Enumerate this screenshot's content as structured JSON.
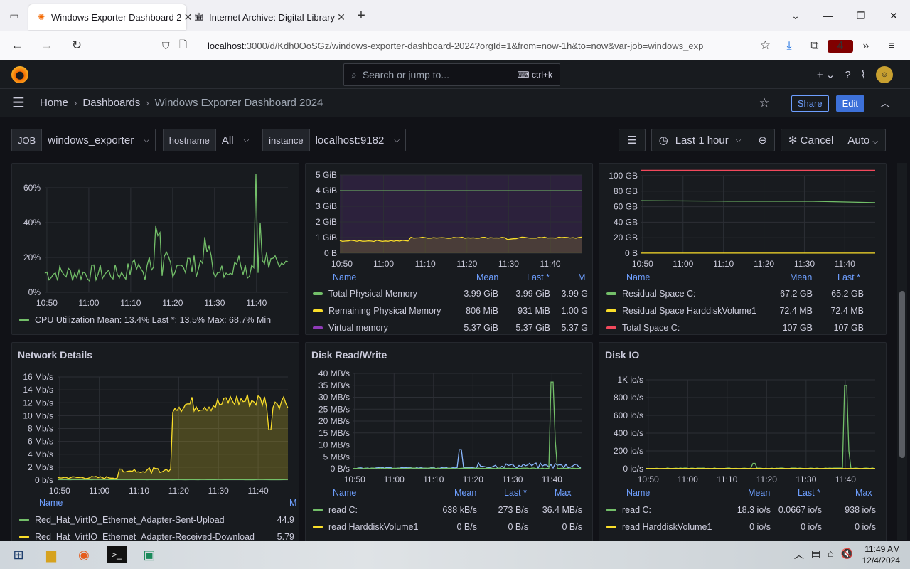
{
  "browser": {
    "tabs": [
      {
        "title": "Windows Exporter Dashboard 2",
        "active": true
      },
      {
        "title": "Internet Archive: Digital Library",
        "active": false
      }
    ],
    "url_host": "localhost",
    "url_rest": ":3000/d/Kdh0OoSGz/windows-exporter-dashboard-2024?orgId=1&from=now-1h&to=now&var-job=windows_exp",
    "extension_badge": "4"
  },
  "grafana": {
    "search_placeholder": "Search or jump to...",
    "search_shortcut": "ctrl+k",
    "breadcrumb": [
      "Home",
      "Dashboards",
      "Windows Exporter Dashboard 2024"
    ],
    "share_label": "Share",
    "edit_label": "Edit",
    "variables": [
      {
        "label": "JOB",
        "value": "windows_exporter"
      },
      {
        "label": "hostname",
        "value": "All"
      },
      {
        "label": "instance",
        "value": "localhost:9182"
      }
    ],
    "time_range": "Last 1 hour",
    "cancel_label": "Cancel",
    "refresh_label": "Auto"
  },
  "panels": {
    "cpu": {
      "y_ticks": [
        "60%",
        "40%",
        "20%",
        "0%"
      ],
      "x_ticks": [
        "10:50",
        "11:00",
        "11:10",
        "11:20",
        "11:30",
        "11:40"
      ],
      "legend": "CPU Utilization  Mean: 13.4%  Last *: 13.5%  Max: 68.7%  Min",
      "color": "#73bf69"
    },
    "memory": {
      "y_ticks": [
        "5 GiB",
        "4 GiB",
        "3 GiB",
        "2 GiB",
        "1 GiB",
        "0 B"
      ],
      "x_ticks": [
        "10:50",
        "11:00",
        "11:10",
        "11:20",
        "11:30",
        "11:40"
      ],
      "headers": {
        "name": "Name",
        "mean": "Mean",
        "last": "Last *",
        "max": "M"
      },
      "rows": [
        {
          "name": "Total Physical Memory",
          "mean": "3.99 GiB",
          "last": "3.99 GiB",
          "max": "3.99 G",
          "color": "#73bf69"
        },
        {
          "name": "Remaining Physical Memory",
          "mean": "806 MiB",
          "last": "931 MiB",
          "max": "1.00 G",
          "color": "#fade2a"
        },
        {
          "name": "Virtual memory",
          "mean": "5.37 GiB",
          "last": "5.37 GiB",
          "max": "5.37 G",
          "color": "#8f3bb8"
        }
      ]
    },
    "disk_space": {
      "y_ticks": [
        "100 GB",
        "80 GB",
        "60 GB",
        "40 GB",
        "20 GB",
        "0 B"
      ],
      "x_ticks": [
        "10:50",
        "11:00",
        "11:10",
        "11:20",
        "11:30",
        "11:40"
      ],
      "headers": {
        "name": "Name",
        "mean": "Mean",
        "last": "Last *"
      },
      "rows": [
        {
          "name": "Residual Space C:",
          "mean": "67.2 GB",
          "last": "65.2 GB",
          "color": "#73bf69"
        },
        {
          "name": "Residual Space HarddiskVolume1",
          "mean": "72.4 MB",
          "last": "72.4 MB",
          "color": "#fade2a"
        },
        {
          "name": "Total Space C:",
          "mean": "107 GB",
          "last": "107 GB",
          "color": "#f2495c"
        }
      ]
    },
    "network": {
      "title": "Network Details",
      "y_ticks": [
        "16 Mb/s",
        "14 Mb/s",
        "12 Mb/s",
        "10 Mb/s",
        "8 Mb/s",
        "6 Mb/s",
        "4 Mb/s",
        "2 Mb/s",
        "0 b/s"
      ],
      "x_ticks": [
        "10:50",
        "11:00",
        "11:10",
        "11:20",
        "11:30",
        "11:40"
      ],
      "headers": {
        "name": "Name",
        "max": "M"
      },
      "rows": [
        {
          "name": "Red_Hat_VirtIO_Ethernet_Adapter-Sent-Upload",
          "value": "44.9",
          "color": "#73bf69"
        },
        {
          "name": "Red_Hat_VirtIO_Ethernet_Adapter-Received-Download",
          "value": "5.79",
          "color": "#fade2a"
        }
      ]
    },
    "disk_rw": {
      "title": "Disk Read/Write",
      "y_ticks": [
        "40 MB/s",
        "35 MB/s",
        "30 MB/s",
        "25 MB/s",
        "20 MB/s",
        "15 MB/s",
        "10 MB/s",
        "5 MB/s",
        "0 B/s"
      ],
      "x_ticks": [
        "10:50",
        "11:00",
        "11:10",
        "11:20",
        "11:30",
        "11:40"
      ],
      "headers": {
        "name": "Name",
        "mean": "Mean",
        "last": "Last *",
        "max": "Max"
      },
      "rows": [
        {
          "name": "read C:",
          "mean": "638 kB/s",
          "last": "273 B/s",
          "max": "36.4 MB/s",
          "color": "#73bf69"
        },
        {
          "name": "read HarddiskVolume1",
          "mean": "0 B/s",
          "last": "0 B/s",
          "max": "0 B/s",
          "color": "#fade2a"
        }
      ]
    },
    "disk_io": {
      "title": "Disk IO",
      "y_ticks": [
        "1K io/s",
        "800 io/s",
        "600 io/s",
        "400 io/s",
        "200 io/s",
        "0 io/s"
      ],
      "x_ticks": [
        "10:50",
        "11:00",
        "11:10",
        "11:20",
        "11:30",
        "11:40"
      ],
      "headers": {
        "name": "Name",
        "mean": "Mean",
        "last": "Last *",
        "max": "Max"
      },
      "rows": [
        {
          "name": "read C:",
          "mean": "18.3 io/s",
          "last": "0.0667 io/s",
          "max": "938 io/s",
          "color": "#73bf69"
        },
        {
          "name": "read HarddiskVolume1",
          "mean": "0 io/s",
          "last": "0 io/s",
          "max": "0 io/s",
          "color": "#fade2a"
        }
      ]
    }
  },
  "taskbar": {
    "time": "11:49 AM",
    "date": "12/4/2024"
  }
}
